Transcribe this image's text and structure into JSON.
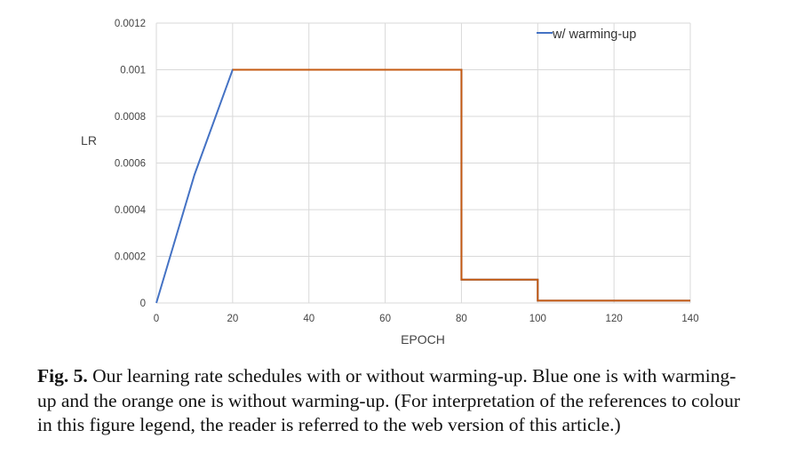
{
  "chart_data": {
    "type": "line",
    "xlabel": "EPOCH",
    "ylabel": "LR",
    "xlim": [
      0,
      140
    ],
    "ylim": [
      0,
      0.0012
    ],
    "xticks": [
      "0",
      "20",
      "40",
      "60",
      "80",
      "100",
      "120",
      "140"
    ],
    "yticks": [
      "0",
      "0.0002",
      "0.0004",
      "0.0006",
      "0.0008",
      "0.001",
      "0.0012"
    ],
    "grid": true,
    "legend_position": "top-right",
    "series": [
      {
        "name": "w/ warming-up",
        "color": "#4472C4",
        "points": [
          [
            0,
            0.0
          ],
          [
            10,
            0.00055
          ],
          [
            20,
            0.001
          ],
          [
            80,
            0.001
          ],
          [
            80,
            0.0001
          ],
          [
            100,
            0.0001
          ],
          [
            100,
            1e-05
          ],
          [
            140,
            1e-05
          ]
        ]
      },
      {
        "name": "",
        "color": "#C55A11",
        "points": [
          [
            20,
            0.001
          ],
          [
            80,
            0.001
          ],
          [
            80,
            0.0001
          ],
          [
            100,
            0.0001
          ],
          [
            100,
            1e-05
          ],
          [
            140,
            1e-05
          ]
        ]
      }
    ]
  },
  "caption": {
    "label": "Fig. 5.",
    "text": "Our learning rate schedules with or without warming-up. Blue one is with warming-up and the orange one is without warming-up. (For interpretation of the references to colour in this figure legend, the reader is referred to the web version of this article.)"
  }
}
